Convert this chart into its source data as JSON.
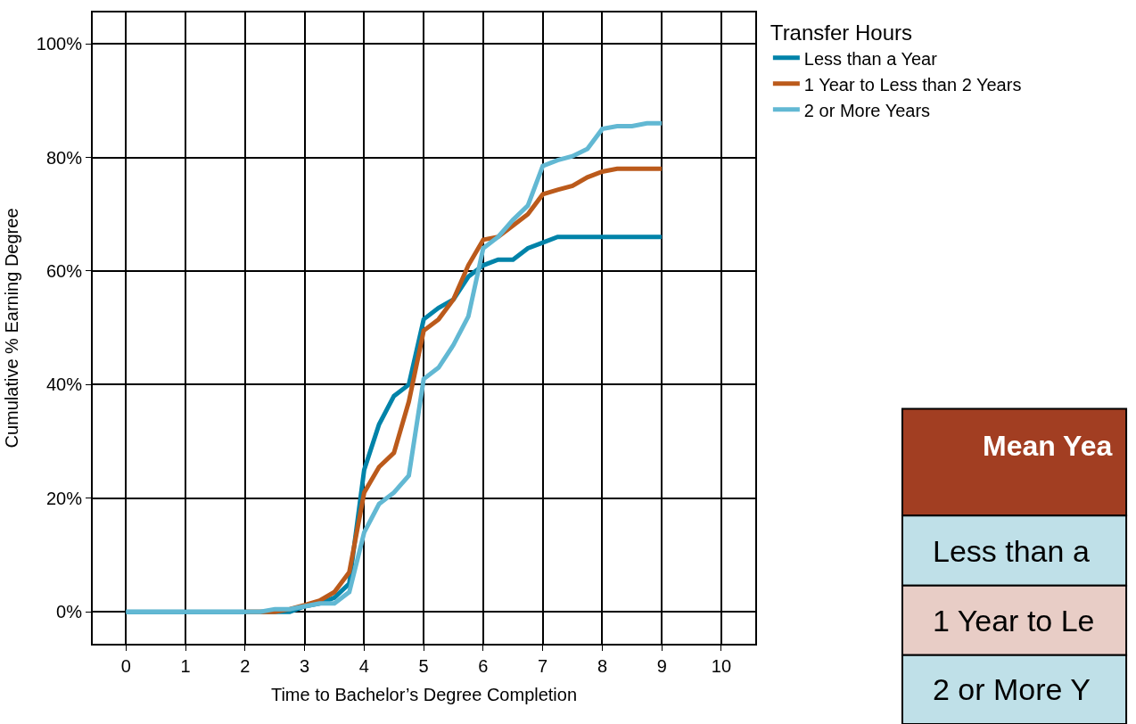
{
  "chart_data": {
    "type": "line",
    "xlabel": "Time to Bachelor’s Degree Completion",
    "ylabel": "Cumulative % Earning Degree",
    "legend_title": "Transfer Hours",
    "x": [
      0,
      0.25,
      0.5,
      0.75,
      1,
      1.25,
      1.5,
      1.75,
      2,
      2.25,
      2.5,
      2.75,
      3,
      3.25,
      3.5,
      3.75,
      4,
      4.25,
      4.5,
      4.75,
      5,
      5.25,
      5.5,
      5.75,
      6,
      6.25,
      6.5,
      6.75,
      7,
      7.25,
      7.5,
      7.75,
      8,
      8.25,
      8.5,
      8.75,
      9
    ],
    "series": [
      {
        "name": "Less than a Year",
        "color": "#0083a9",
        "values": [
          0,
          0,
          0,
          0,
          0,
          0,
          0,
          0,
          0,
          0,
          0,
          0,
          1,
          1.5,
          2.5,
          5,
          25,
          33,
          38,
          40,
          51.5,
          53.5,
          55,
          59,
          61,
          62,
          62,
          64,
          65,
          66,
          66,
          66,
          66,
          66,
          66,
          66,
          66
        ]
      },
      {
        "name": "1 Year to Less than 2 Years",
        "color": "#bb5a1b",
        "values": [
          null,
          null,
          null,
          null,
          null,
          null,
          null,
          null,
          0,
          0,
          0,
          0.5,
          1.2,
          2,
          3.5,
          7,
          21,
          25.5,
          28,
          37,
          49.5,
          51.5,
          55,
          61,
          65.5,
          66,
          68,
          70,
          73.5,
          74.3,
          75,
          76.5,
          77.5,
          78,
          78,
          78,
          78
        ]
      },
      {
        "name": "2 or More Years",
        "color": "#62b8d3",
        "values": [
          0,
          0,
          0,
          0,
          0,
          0,
          0,
          0,
          0,
          0,
          0.5,
          0.5,
          1,
          1.5,
          1.5,
          3.5,
          14,
          19,
          21,
          24,
          41,
          43,
          47,
          52,
          64,
          66,
          69,
          71.5,
          78.5,
          79.5,
          80.2,
          81.5,
          85,
          85.5,
          85.5,
          86,
          86
        ]
      }
    ],
    "xlim": [
      -0.56,
      10.57
    ],
    "xticks": [
      0,
      1,
      2,
      3,
      4,
      5,
      6,
      7,
      8,
      9,
      10
    ],
    "ylim": [
      -5.6,
      105.5
    ],
    "yticks": [
      {
        "value": 0,
        "label": "0%"
      },
      {
        "value": 20,
        "label": "20%"
      },
      {
        "value": 40,
        "label": "40%"
      },
      {
        "value": 60,
        "label": "60%"
      },
      {
        "value": 80,
        "label": "80%"
      },
      {
        "value": 100,
        "label": "100%"
      }
    ],
    "grid": true,
    "legend": "top right",
    "marker": "none",
    "line_style": "solid",
    "annotations": [
      "Mean Yea",
      "Less than a",
      "1 Year to Le",
      "2 or More Y"
    ]
  }
}
